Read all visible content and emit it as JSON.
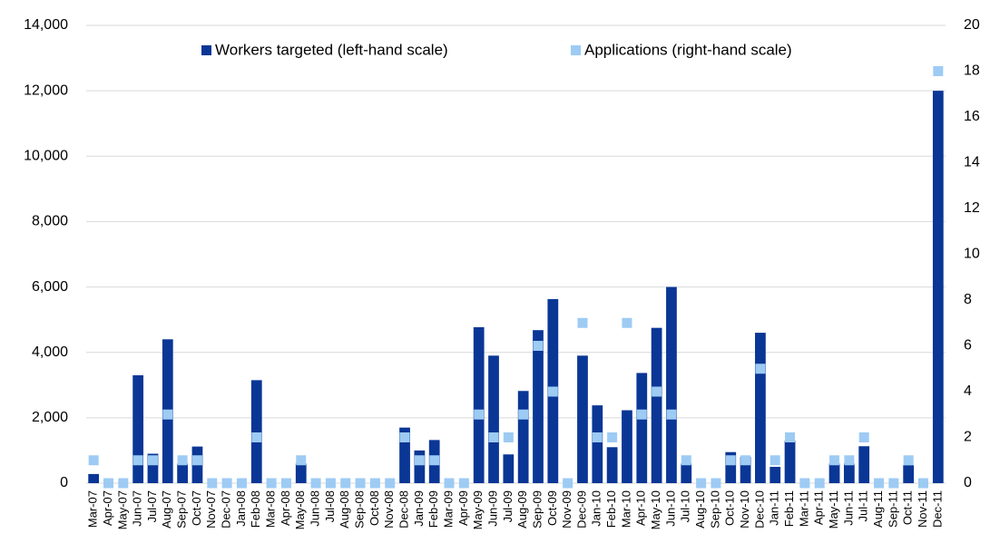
{
  "chart_data": {
    "type": "bar",
    "categories": [
      "Mar-07",
      "Apr-07",
      "May-07",
      "Jun-07",
      "Jul-07",
      "Aug-07",
      "Sep-07",
      "Oct-07",
      "Nov-07",
      "Dec-07",
      "Jan-08",
      "Feb-08",
      "Mar-08",
      "Apr-08",
      "May-08",
      "Jun-08",
      "Jul-08",
      "Aug-08",
      "Sep-08",
      "Oct-08",
      "Nov-08",
      "Dec-08",
      "Jan-09",
      "Feb-09",
      "Mar-09",
      "Apr-09",
      "May-09",
      "Jun-09",
      "Jul-09",
      "Aug-09",
      "Sep-09",
      "Oct-09",
      "Nov-09",
      "Dec-09",
      "Jan-10",
      "Feb-10",
      "Mar-10",
      "Apr-10",
      "May-10",
      "Jun-10",
      "Jul-10",
      "Aug-10",
      "Sep-10",
      "Oct-10",
      "Nov-10",
      "Dec-10",
      "Jan-11",
      "Feb-11",
      "Mar-11",
      "Apr-11",
      "May-11",
      "Jun-11",
      "Jul-11",
      "Aug-11",
      "Sep-11",
      "Oct-11",
      "Nov-11",
      "Dec-11"
    ],
    "series": [
      {
        "name": "Workers targeted (left-hand scale)",
        "color": "#0a3696",
        "values": [
          280,
          0,
          0,
          3300,
          900,
          4400,
          600,
          1120,
          0,
          0,
          0,
          3150,
          0,
          0,
          600,
          0,
          0,
          0,
          0,
          0,
          0,
          1700,
          1000,
          1320,
          0,
          0,
          4770,
          3900,
          880,
          2820,
          4680,
          5630,
          0,
          3900,
          2380,
          1100,
          2230,
          3370,
          4750,
          6000,
          600,
          0,
          0,
          950,
          800,
          4600,
          500,
          1300,
          0,
          0,
          600,
          600,
          1130,
          0,
          0,
          550,
          0,
          12000
        ]
      },
      {
        "name": "Applications (right-hand scale)",
        "color": "#9dcbf4",
        "axis": "y2",
        "marker": "square",
        "values": [
          1,
          0,
          0,
          1,
          1,
          3,
          1,
          1,
          0,
          0,
          0,
          2,
          0,
          0,
          1,
          0,
          0,
          0,
          0,
          0,
          0,
          2,
          1,
          1,
          0,
          0,
          3,
          2,
          2,
          3,
          6,
          4,
          0,
          7,
          2,
          2,
          7,
          3,
          4,
          3,
          1,
          0,
          0,
          1,
          1,
          5,
          1,
          2,
          0,
          0,
          1,
          1,
          2,
          0,
          0,
          1,
          0,
          18
        ]
      }
    ],
    "ylim": [
      0,
      14000
    ],
    "yticks": [
      0,
      {
        "value": 2000,
        "label": "2,000"
      },
      {
        "value": 4000,
        "label": "4,000"
      },
      {
        "value": 6000,
        "label": "6,000"
      },
      {
        "value": 8000,
        "label": "8,000"
      },
      {
        "value": 10000,
        "label": "10,000"
      },
      {
        "value": 12000,
        "label": "12,000"
      },
      {
        "value": 14000,
        "label": "14,000"
      }
    ],
    "y2lim": [
      0,
      20
    ],
    "y2ticks": [
      0,
      2,
      4,
      6,
      8,
      10,
      12,
      14,
      16,
      18,
      20
    ],
    "grid": true,
    "legend": "top"
  }
}
